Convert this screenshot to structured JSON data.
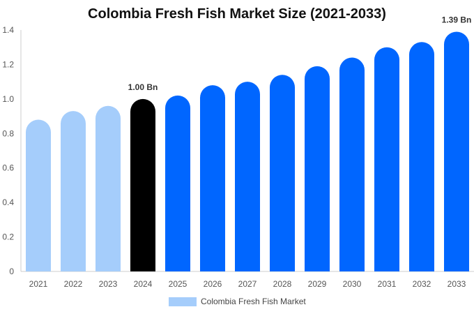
{
  "chart_data": {
    "type": "bar",
    "title": "Colombia Fresh Fish Market Size (2021-2033)",
    "xlabel": "",
    "ylabel": "",
    "categories": [
      "2021",
      "2022",
      "2023",
      "2024",
      "2025",
      "2026",
      "2027",
      "2028",
      "2029",
      "2030",
      "2031",
      "2032",
      "2033"
    ],
    "series": [
      {
        "name": "Colombia Fresh Fish Market",
        "values": [
          0.88,
          0.93,
          0.96,
          1.0,
          1.02,
          1.08,
          1.1,
          1.14,
          1.19,
          1.24,
          1.3,
          1.33,
          1.39
        ]
      }
    ],
    "ylim": [
      0,
      1.4
    ],
    "yticks": [
      0,
      0.2,
      0.4,
      0.6,
      0.8,
      1.0,
      1.2,
      1.4
    ],
    "ytick_labels": [
      "0",
      "0.2",
      "0.4",
      "0.6",
      "0.8",
      "1.0",
      "1.2",
      "1.4"
    ],
    "data_labels": [
      {
        "category": "2024",
        "text": "1.00 Bn"
      },
      {
        "category": "2033",
        "text": "1.39 Bn"
      }
    ],
    "colors": {
      "historical": "#a5cdfb",
      "base_year": "#000000",
      "forecast": "#0066ff",
      "axis": "#cccccc",
      "tick_text": "#555555",
      "label_text": "#333333"
    },
    "bar_color_groups": [
      "historical",
      "historical",
      "historical",
      "base_year",
      "forecast",
      "forecast",
      "forecast",
      "forecast",
      "forecast",
      "forecast",
      "forecast",
      "forecast",
      "forecast"
    ],
    "grid": false,
    "legend_position": "bottom"
  }
}
